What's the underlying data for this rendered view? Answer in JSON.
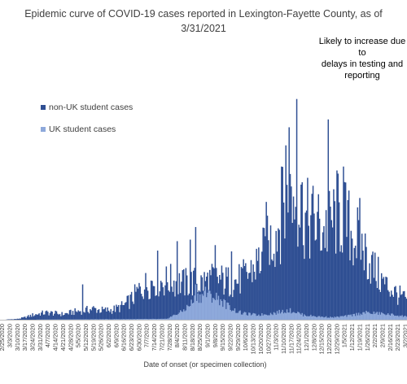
{
  "chart_data": {
    "type": "bar",
    "stacked": true,
    "title": "Epidemic curve of COVID-19 cases reported in Lexington-Fayette County, as of 3/31/2021",
    "title_lines": [
      "Epidemic curve of COVID-19 cases reported in Lexington-Fayette County, as of",
      "3/31/2021"
    ],
    "annotation": "Likely to increase due to\ndelays in testing and\nreporting",
    "xlabel": "Date of onset (or specimen collection)",
    "ylabel": "",
    "grid": false,
    "legend_position": "top-left",
    "colors": {
      "non_uk": "#2f4f93",
      "uk": "#8ea9db",
      "axis": "#bfbfbf"
    },
    "x_start": "2020-02-25",
    "x_end": "2021-03-03",
    "tick_labels": [
      "2/25/2020",
      "3/3/2020",
      "3/10/2020",
      "3/17/2020",
      "3/24/2020",
      "3/31/2020",
      "4/7/2020",
      "4/14/2020",
      "4/21/2020",
      "4/28/2020",
      "5/5/2020",
      "5/12/2020",
      "5/19/2020",
      "5/26/2020",
      "6/2/2020",
      "6/9/2020",
      "6/16/2020",
      "6/23/2020",
      "6/30/2020",
      "7/7/2020",
      "7/14/2020",
      "7/21/2020",
      "7/28/2020",
      "8/4/2020",
      "8/11/2020",
      "8/18/2020",
      "8/25/2020",
      "9/1/2020",
      "9/8/2020",
      "9/15/2020",
      "9/22/2020",
      "9/29/2020",
      "10/6/2020",
      "10/13/2020",
      "10/20/2020",
      "10/27/2020",
      "11/3/2020",
      "11/10/2020",
      "11/17/2020",
      "11/24/2020",
      "12/1/2020",
      "12/8/2020",
      "12/15/2020",
      "12/22/2020",
      "12/29/2020",
      "1/5/2021",
      "1/12/2021",
      "1/19/2021",
      "1/26/2021",
      "2/2/2021",
      "2/9/2021",
      "2/16/2021",
      "2/23/2021",
      "3/2/2021"
    ],
    "ylim": [
      0,
      290
    ],
    "series": [
      {
        "name": "non-UK student cases",
        "keypoints": [
          [
            "2020-02-25",
            0
          ],
          [
            "2020-03-10",
            1
          ],
          [
            "2020-03-17",
            3
          ],
          [
            "2020-03-24",
            6
          ],
          [
            "2020-03-31",
            8
          ],
          [
            "2020-04-07",
            9
          ],
          [
            "2020-04-14",
            8
          ],
          [
            "2020-04-21",
            7
          ],
          [
            "2020-04-28",
            9
          ],
          [
            "2020-05-05",
            11
          ],
          [
            "2020-05-12",
            12
          ],
          [
            "2020-05-19",
            14
          ],
          [
            "2020-05-26",
            12
          ],
          [
            "2020-06-02",
            12
          ],
          [
            "2020-06-09",
            14
          ],
          [
            "2020-06-16",
            18
          ],
          [
            "2020-06-23",
            26
          ],
          [
            "2020-06-30",
            38
          ],
          [
            "2020-07-07",
            45
          ],
          [
            "2020-07-14",
            50
          ],
          [
            "2020-07-21",
            48
          ],
          [
            "2020-07-28",
            50
          ],
          [
            "2020-08-04",
            48
          ],
          [
            "2020-08-11",
            46
          ],
          [
            "2020-08-18",
            48
          ],
          [
            "2020-08-25",
            46
          ],
          [
            "2020-09-01",
            50
          ],
          [
            "2020-09-08",
            52
          ],
          [
            "2020-09-15",
            50
          ],
          [
            "2020-09-22",
            48
          ],
          [
            "2020-09-29",
            50
          ],
          [
            "2020-10-06",
            55
          ],
          [
            "2020-10-13",
            65
          ],
          [
            "2020-10-20",
            78
          ],
          [
            "2020-10-27",
            95
          ],
          [
            "2020-11-03",
            112
          ],
          [
            "2020-11-10",
            140
          ],
          [
            "2020-11-17",
            155
          ],
          [
            "2020-11-24",
            150
          ],
          [
            "2020-12-01",
            125
          ],
          [
            "2020-12-08",
            125
          ],
          [
            "2020-12-15",
            115
          ],
          [
            "2020-12-22",
            118
          ],
          [
            "2020-12-29",
            135
          ],
          [
            "2021-01-05",
            128
          ],
          [
            "2021-01-12",
            110
          ],
          [
            "2021-01-19",
            100
          ],
          [
            "2021-01-26",
            80
          ],
          [
            "2021-02-02",
            62
          ],
          [
            "2021-02-09",
            48
          ],
          [
            "2021-02-16",
            40
          ],
          [
            "2021-02-23",
            32
          ],
          [
            "2021-03-02",
            26
          ]
        ],
        "spikes": [
          [
            "2020-05-09",
            45
          ],
          [
            "2020-07-17",
            88
          ],
          [
            "2020-08-04",
            100
          ],
          [
            "2020-08-16",
            102
          ],
          [
            "2020-08-21",
            118
          ],
          [
            "2020-09-08",
            95
          ],
          [
            "2020-09-23",
            87
          ],
          [
            "2020-10-25",
            150
          ],
          [
            "2020-11-08",
            195
          ],
          [
            "2020-11-12",
            222
          ],
          [
            "2020-11-15",
            245
          ],
          [
            "2020-11-22",
            281
          ],
          [
            "2020-11-26",
            172
          ],
          [
            "2020-12-21",
            255
          ],
          [
            "2021-01-04",
            195
          ],
          [
            "2021-01-19",
            155
          ]
        ]
      },
      {
        "name": "UK student cases",
        "keypoints": [
          [
            "2020-02-25",
            0
          ],
          [
            "2020-07-25",
            1
          ],
          [
            "2020-08-08",
            10
          ],
          [
            "2020-08-15",
            18
          ],
          [
            "2020-08-22",
            28
          ],
          [
            "2020-08-29",
            32
          ],
          [
            "2020-09-05",
            30
          ],
          [
            "2020-09-12",
            26
          ],
          [
            "2020-09-19",
            18
          ],
          [
            "2020-09-26",
            12
          ],
          [
            "2020-10-03",
            8
          ],
          [
            "2020-10-17",
            6
          ],
          [
            "2020-10-31",
            8
          ],
          [
            "2020-11-14",
            12
          ],
          [
            "2020-11-21",
            10
          ],
          [
            "2020-11-28",
            6
          ],
          [
            "2020-12-12",
            4
          ],
          [
            "2020-12-26",
            3
          ],
          [
            "2021-01-09",
            5
          ],
          [
            "2021-01-23",
            9
          ],
          [
            "2021-02-06",
            8
          ],
          [
            "2021-02-20",
            6
          ],
          [
            "2021-03-03",
            4
          ]
        ],
        "spikes": [
          [
            "2020-08-21",
            45
          ],
          [
            "2020-08-30",
            42
          ],
          [
            "2020-09-02",
            38
          ]
        ]
      }
    ]
  }
}
